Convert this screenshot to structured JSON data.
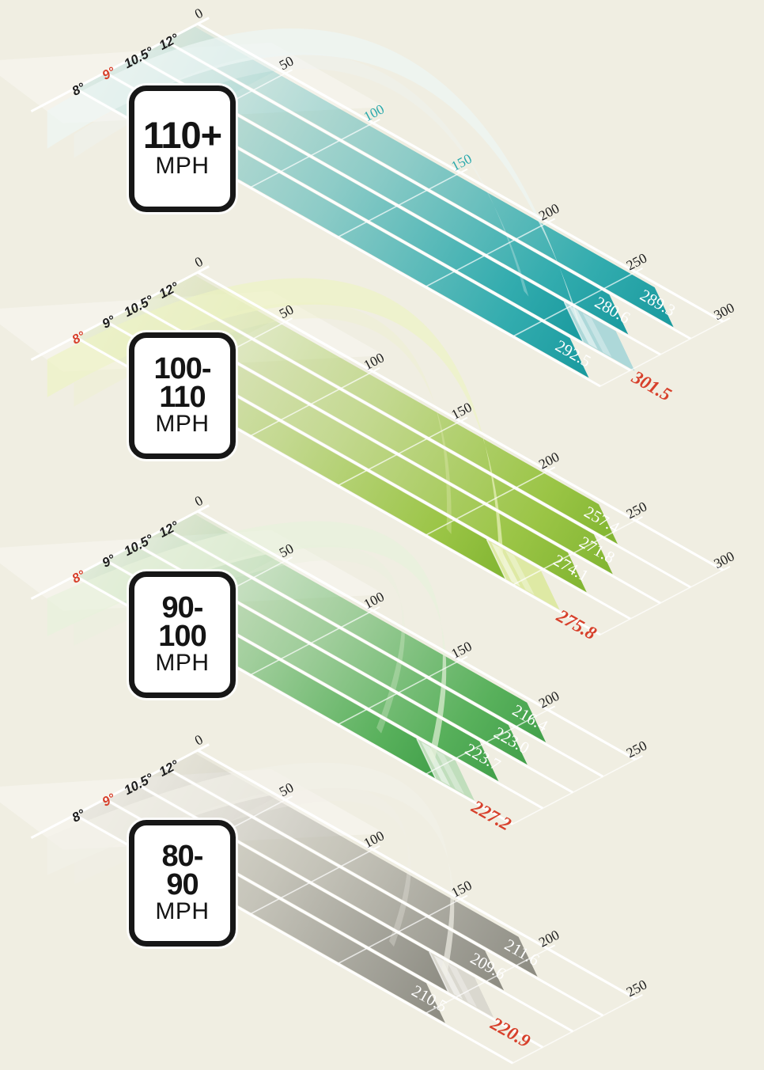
{
  "figure": {
    "background": "#f0eee2",
    "ink": "#1c1c1c",
    "red": "#d7402b",
    "line_white": "#ffffff"
  },
  "chart_data": {
    "type": "bar",
    "layout_style": "isometric-distance-bands",
    "angle_categories": [
      "12°",
      "10.5°",
      "9°",
      "8°"
    ],
    "panels": [
      {
        "sign_lines": [
          "110+",
          "MPH"
        ],
        "optimal_angle": "9°",
        "axis_ticks": [
          0,
          50,
          100,
          150,
          200,
          250,
          300
        ],
        "accent_ticks": [
          100,
          150
        ],
        "colors": {
          "accent": "#2aa9ac",
          "dark": "#17989d",
          "roll": "#a7d6d8",
          "arc": "#edf6f4"
        },
        "bars": [
          {
            "angle": "12°",
            "label": "289.3",
            "value": 289.3
          },
          {
            "angle": "10.5°",
            "label": "280.6",
            "value": 280.6
          },
          {
            "angle": "9°",
            "label": "301.5",
            "value": 301.5,
            "optimal": true,
            "carry_est": 272
          },
          {
            "angle": "8°",
            "label": "292.5",
            "value": 292.5
          }
        ]
      },
      {
        "sign_lines": [
          "100-",
          "110",
          "MPH"
        ],
        "optimal_angle": "8°",
        "axis_ticks": [
          0,
          50,
          100,
          150,
          200,
          250,
          300
        ],
        "accent_ticks": [],
        "colors": {
          "accent": "#97c33f",
          "dark": "#7eb32f",
          "roll": "#dce89e",
          "arc": "#eef3c3"
        },
        "bars": [
          {
            "angle": "12°",
            "label": "257.4",
            "value": 257.4
          },
          {
            "angle": "10.5°",
            "label": "271.8",
            "value": 271.8
          },
          {
            "angle": "9°",
            "label": "274.1",
            "value": 274.1
          },
          {
            "angle": "8°",
            "label": "275.8",
            "value": 275.8,
            "optimal": true,
            "carry_est": 245
          }
        ]
      },
      {
        "sign_lines": [
          "90-",
          "100",
          "MPH"
        ],
        "optimal_angle": "8°",
        "axis_ticks": [
          0,
          50,
          100,
          150,
          200,
          250
        ],
        "accent_ticks": [],
        "colors": {
          "accent": "#52ae56",
          "dark": "#3f9e48",
          "roll": "#bcdcb8",
          "arc": "#e7f1dc"
        },
        "bars": [
          {
            "angle": "12°",
            "label": "216.4",
            "value": 216.4
          },
          {
            "angle": "10.5°",
            "label": "223.0",
            "value": 223.0
          },
          {
            "angle": "9°",
            "label": "223.7",
            "value": 223.7
          },
          {
            "angle": "8°",
            "label": "227.2",
            "value": 227.2,
            "optimal": true,
            "carry_est": 205
          }
        ]
      },
      {
        "sign_lines": [
          "80-",
          "90",
          "MPH"
        ],
        "optimal_angle": "9°",
        "axis_ticks": [
          0,
          50,
          100,
          150,
          200,
          250
        ],
        "accent_ticks": [],
        "colors": {
          "accent": "#9a9990",
          "dark": "#8a897f",
          "roll": "#d8d6cd",
          "arc": "#f1f0e8"
        },
        "bars": [
          {
            "angle": "12°",
            "label": "211.6",
            "value": 211.6
          },
          {
            "angle": "10.5°",
            "label": "209.6",
            "value": 209.6
          },
          {
            "angle": "9°",
            "label": "220.9",
            "value": 220.9,
            "optimal": true,
            "carry_est": 195
          },
          {
            "angle": "8°",
            "label": "210.5",
            "value": 210.5
          }
        ]
      }
    ]
  }
}
